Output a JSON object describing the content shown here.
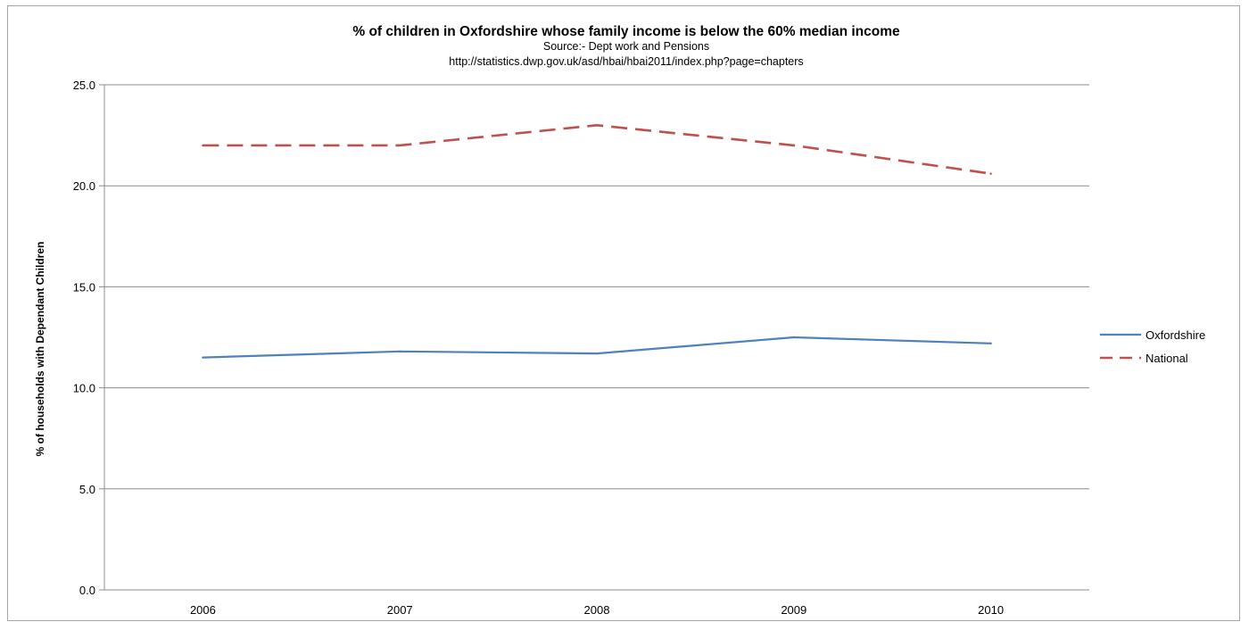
{
  "chart_data": {
    "type": "line",
    "title": "% of children in Oxfordshire whose family income is below the 60% median income",
    "subtitle": "Source:- Dept work and Pensions",
    "source_url": "http://statistics.dwp.gov.uk/asd/hbai/hbai2011/index.php?page=chapters",
    "xlabel": "",
    "ylabel": "% of households with Dependant Children",
    "categories": [
      "2006",
      "2007",
      "2008",
      "2009",
      "2010"
    ],
    "y_ticks": [
      "0.0",
      "5.0",
      "10.0",
      "15.0",
      "20.0",
      "25.0"
    ],
    "ylim": [
      0,
      25
    ],
    "grid": true,
    "legend_position": "right",
    "series": [
      {
        "name": "Oxfordshire",
        "values": [
          11.5,
          11.8,
          11.7,
          12.5,
          12.2
        ],
        "color": "#4f81bd",
        "style": "solid"
      },
      {
        "name": "National",
        "values": [
          22.0,
          22.0,
          23.0,
          22.0,
          20.6
        ],
        "color": "#c0504d",
        "style": "dashed"
      }
    ]
  }
}
